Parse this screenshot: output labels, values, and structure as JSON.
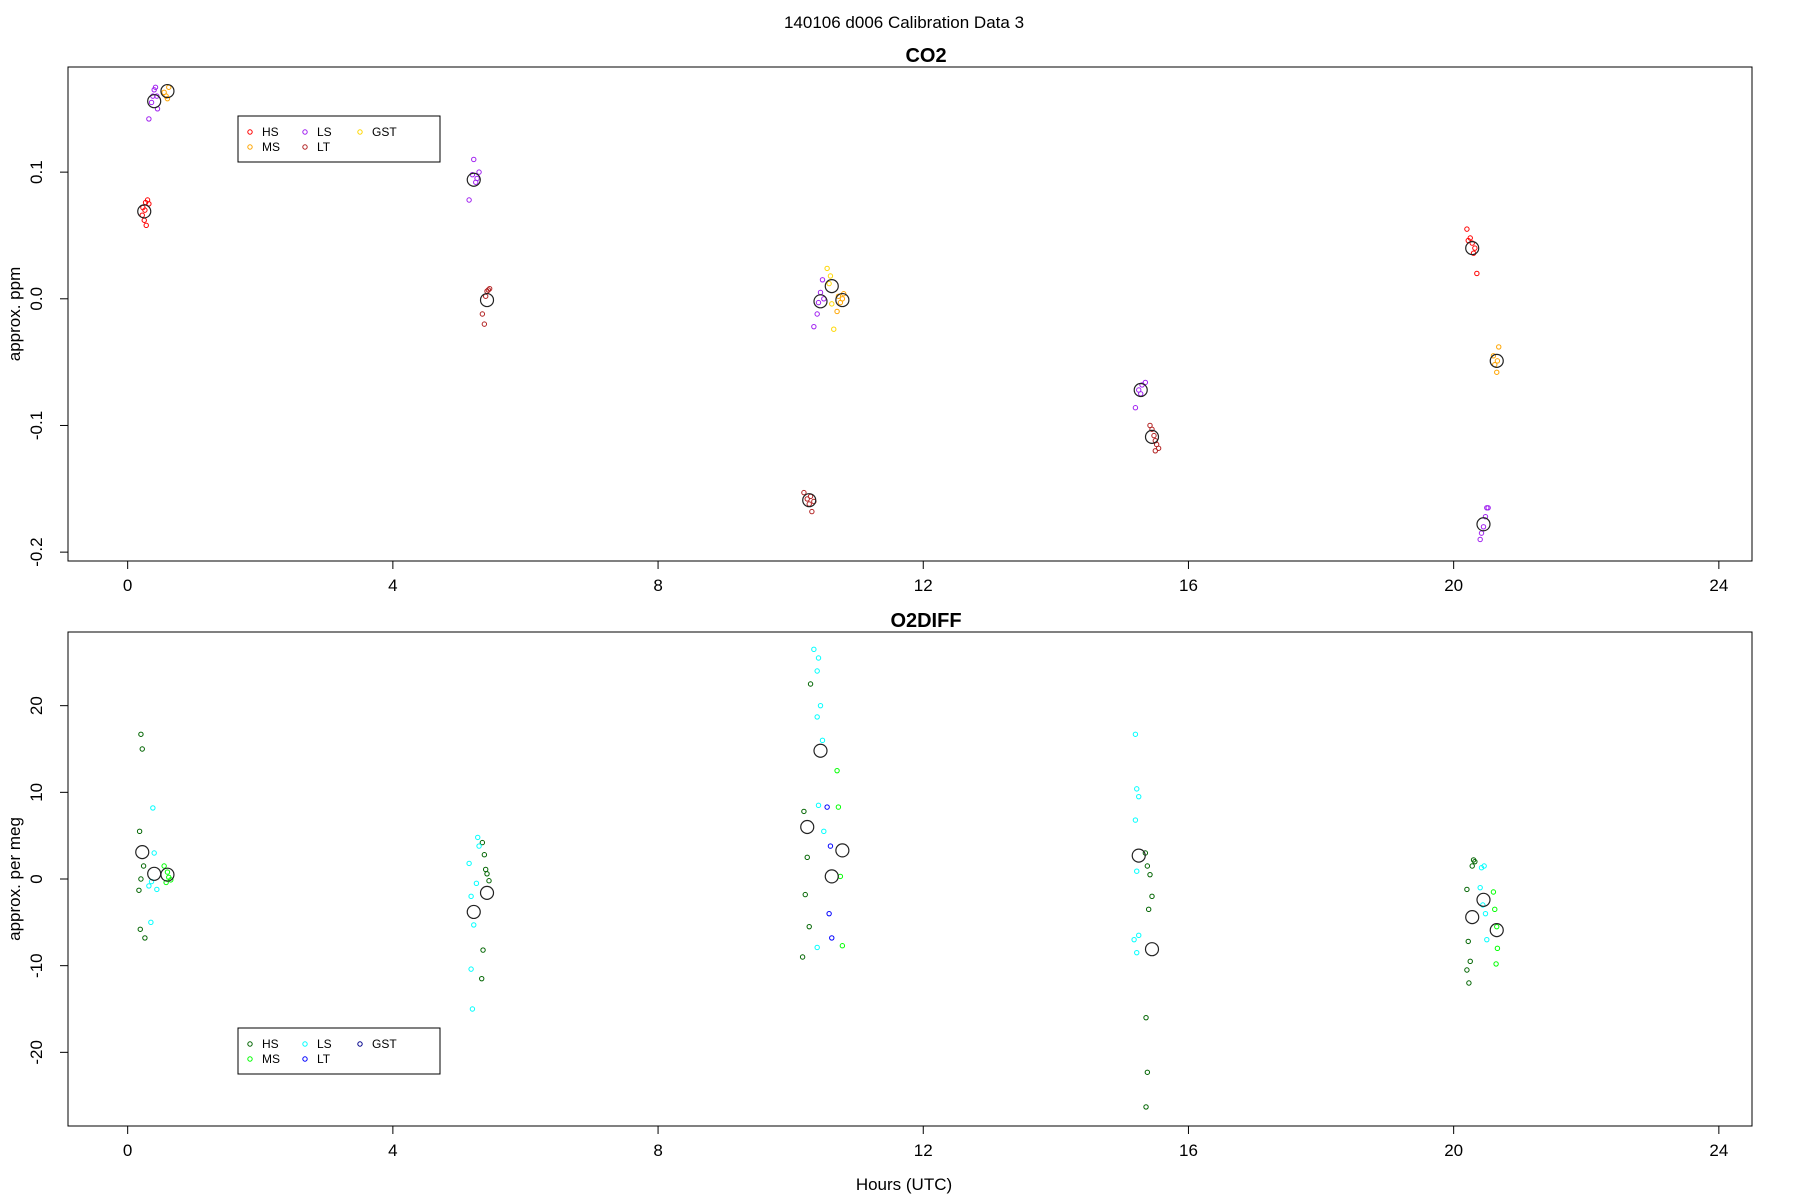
{
  "figure": {
    "suptitle": "140106   d006   Calibration Data 3",
    "xlabel": "Hours (UTC)"
  },
  "chart_data": [
    {
      "type": "scatter",
      "title": "CO2",
      "xlabel": "",
      "ylabel": "approx. ppm",
      "xlim": [
        -0.9,
        24.5
      ],
      "ylim": [
        -0.207,
        0.183
      ],
      "xticks": [
        0,
        4,
        8,
        12,
        16,
        20,
        24
      ],
      "yticks": [
        -0.2,
        -0.1,
        0.0,
        0.1
      ],
      "ytick_labels": [
        "-0.2",
        "-0.1",
        "0.0",
        "0.1"
      ],
      "legend_position": "top-left",
      "series": [
        {
          "name": "HS",
          "color": "#ff0000",
          "points": [
            [
              0.22,
              0.066
            ],
            [
              0.25,
              0.062
            ],
            [
              0.28,
              0.058
            ],
            [
              0.23,
              0.072
            ],
            [
              0.27,
              0.076
            ],
            [
              0.3,
              0.078
            ],
            [
              0.32,
              0.075
            ],
            [
              0.26,
              0.07
            ],
            [
              20.2,
              0.055
            ],
            [
              20.25,
              0.048
            ],
            [
              20.28,
              0.044
            ],
            [
              20.3,
              0.036
            ],
            [
              20.32,
              0.04
            ],
            [
              20.35,
              0.02
            ],
            [
              20.22,
              0.046
            ]
          ]
        },
        {
          "name": "MS",
          "color": "#ffa500",
          "points": [
            [
              0.55,
              0.163
            ],
            [
              0.58,
              0.16
            ],
            [
              0.62,
              0.167
            ],
            [
              0.6,
              0.158
            ],
            [
              10.72,
              0.002
            ],
            [
              10.75,
              -0.003
            ],
            [
              10.78,
              0.0
            ],
            [
              10.7,
              -0.01
            ],
            [
              10.8,
              0.004
            ],
            [
              20.6,
              -0.045
            ],
            [
              20.62,
              -0.052
            ],
            [
              20.65,
              -0.058
            ],
            [
              20.68,
              -0.038
            ],
            [
              20.66,
              -0.049
            ]
          ]
        },
        {
          "name": "LS",
          "color": "#a020f0",
          "points": [
            [
              0.32,
              0.142
            ],
            [
              0.36,
              0.155
            ],
            [
              0.38,
              0.16
            ],
            [
              0.4,
              0.165
            ],
            [
              0.42,
              0.167
            ],
            [
              0.45,
              0.15
            ],
            [
              0.44,
              0.16
            ],
            [
              5.15,
              0.078
            ],
            [
              5.2,
              0.098
            ],
            [
              5.22,
              0.11
            ],
            [
              5.25,
              0.092
            ],
            [
              5.27,
              0.095
            ],
            [
              5.3,
              0.1
            ],
            [
              10.35,
              -0.022
            ],
            [
              10.4,
              -0.012
            ],
            [
              10.42,
              -0.003
            ],
            [
              10.45,
              0.005
            ],
            [
              10.48,
              0.015
            ],
            [
              10.5,
              0.0
            ],
            [
              15.2,
              -0.086
            ],
            [
              15.25,
              -0.072
            ],
            [
              15.3,
              -0.068
            ],
            [
              15.35,
              -0.066
            ],
            [
              15.28,
              -0.075
            ],
            [
              20.4,
              -0.19
            ],
            [
              20.42,
              -0.185
            ],
            [
              20.45,
              -0.18
            ],
            [
              20.48,
              -0.172
            ],
            [
              20.5,
              -0.165
            ],
            [
              20.52,
              -0.165
            ]
          ]
        },
        {
          "name": "LT",
          "color": "#b22222",
          "points": [
            [
              5.35,
              -0.012
            ],
            [
              5.38,
              -0.02
            ],
            [
              5.4,
              0.002
            ],
            [
              5.42,
              0.006
            ],
            [
              5.44,
              0.007
            ],
            [
              5.46,
              0.008
            ],
            [
              10.2,
              -0.153
            ],
            [
              10.25,
              -0.158
            ],
            [
              10.28,
              -0.162
            ],
            [
              10.3,
              -0.156
            ],
            [
              10.32,
              -0.168
            ],
            [
              10.35,
              -0.16
            ],
            [
              15.42,
              -0.1
            ],
            [
              15.45,
              -0.103
            ],
            [
              15.48,
              -0.108
            ],
            [
              15.5,
              -0.112
            ],
            [
              15.52,
              -0.115
            ],
            [
              15.55,
              -0.118
            ],
            [
              15.5,
              -0.12
            ]
          ]
        },
        {
          "name": "GST",
          "color": "#ffd700",
          "points": [
            [
              10.55,
              0.024
            ],
            [
              10.58,
              0.012
            ],
            [
              10.62,
              -0.004
            ],
            [
              10.65,
              -0.024
            ],
            [
              10.6,
              0.018
            ]
          ]
        }
      ],
      "means": [
        [
          0.25,
          0.069
        ],
        [
          0.4,
          0.156
        ],
        [
          0.6,
          0.164
        ],
        [
          5.22,
          0.094
        ],
        [
          5.42,
          -0.001
        ],
        [
          10.28,
          -0.159
        ],
        [
          10.45,
          -0.002
        ],
        [
          10.62,
          0.01
        ],
        [
          10.78,
          -0.001
        ],
        [
          15.28,
          -0.072
        ],
        [
          15.45,
          -0.109
        ],
        [
          20.28,
          0.04
        ],
        [
          20.45,
          -0.178
        ],
        [
          20.65,
          -0.049
        ]
      ]
    },
    {
      "type": "scatter",
      "title": "O2DIFF",
      "xlabel": "Hours (UTC)",
      "ylabel": "approx. per meg",
      "xlim": [
        -0.9,
        24.5
      ],
      "ylim": [
        -28.5,
        28.5
      ],
      "xticks": [
        0,
        4,
        8,
        12,
        16,
        20,
        24
      ],
      "yticks": [
        -20,
        -10,
        0,
        10,
        20
      ],
      "ytick_labels": [
        "-20",
        "-10",
        "0",
        "10",
        "20"
      ],
      "legend_position": "bottom-left",
      "series": [
        {
          "name": "HS",
          "color": "#006400",
          "points": [
            [
              0.2,
              16.7
            ],
            [
              0.22,
              15.0
            ],
            [
              0.18,
              5.5
            ],
            [
              0.24,
              1.5
            ],
            [
              0.2,
              0.0
            ],
            [
              0.17,
              -1.3
            ],
            [
              0.19,
              -5.8
            ],
            [
              0.26,
              -6.8
            ],
            [
              5.35,
              4.2
            ],
            [
              5.38,
              2.8
            ],
            [
              5.4,
              1.1
            ],
            [
              5.42,
              0.6
            ],
            [
              5.45,
              -0.2
            ],
            [
              5.36,
              -8.2
            ],
            [
              5.34,
              -11.5
            ],
            [
              10.2,
              7.8
            ],
            [
              10.25,
              2.5
            ],
            [
              10.22,
              -1.8
            ],
            [
              10.28,
              -5.5
            ],
            [
              10.18,
              -9.0
            ],
            [
              10.3,
              22.5
            ],
            [
              15.35,
              3.0
            ],
            [
              15.38,
              1.5
            ],
            [
              15.42,
              0.5
            ],
            [
              15.45,
              -2.0
            ],
            [
              15.4,
              -3.5
            ],
            [
              15.36,
              -16.0
            ],
            [
              15.38,
              -22.3
            ],
            [
              15.36,
              -26.3
            ],
            [
              20.2,
              -1.2
            ],
            [
              20.22,
              -7.2
            ],
            [
              20.25,
              -9.5
            ],
            [
              20.2,
              -10.5
            ],
            [
              20.23,
              -12.0
            ],
            [
              20.3,
              2.2
            ],
            [
              20.28,
              1.5
            ],
            [
              20.32,
              2.0
            ]
          ]
        },
        {
          "name": "MS",
          "color": "#00ff00",
          "points": [
            [
              0.55,
              1.5
            ],
            [
              0.6,
              0.8
            ],
            [
              0.62,
              0.2
            ],
            [
              0.58,
              -0.4
            ],
            [
              0.65,
              -0.1
            ],
            [
              10.7,
              12.5
            ],
            [
              10.72,
              8.3
            ],
            [
              10.75,
              0.3
            ],
            [
              10.78,
              -7.7
            ],
            [
              20.6,
              -1.5
            ],
            [
              20.62,
              -3.5
            ],
            [
              20.65,
              -5.5
            ],
            [
              20.66,
              -8.0
            ],
            [
              20.64,
              -9.8
            ]
          ]
        },
        {
          "name": "LS",
          "color": "#00ffff",
          "points": [
            [
              0.38,
              8.2
            ],
            [
              0.4,
              3.0
            ],
            [
              0.36,
              -0.3
            ],
            [
              0.44,
              -1.2
            ],
            [
              0.32,
              -0.8
            ],
            [
              0.35,
              -5.0
            ],
            [
              5.15,
              1.8
            ],
            [
              5.18,
              -2.0
            ],
            [
              5.22,
              -5.3
            ],
            [
              5.26,
              -0.5
            ],
            [
              5.28,
              4.8
            ],
            [
              5.3,
              3.8
            ],
            [
              5.18,
              -10.4
            ],
            [
              5.2,
              -15.0
            ],
            [
              10.35,
              26.5
            ],
            [
              10.4,
              24.0
            ],
            [
              10.42,
              25.5
            ],
            [
              10.45,
              20.0
            ],
            [
              10.48,
              16.0
            ],
            [
              10.4,
              18.7
            ],
            [
              10.42,
              8.5
            ],
            [
              10.5,
              5.5
            ],
            [
              10.4,
              -7.9
            ],
            [
              15.2,
              16.7
            ],
            [
              15.22,
              10.4
            ],
            [
              15.25,
              9.5
            ],
            [
              15.2,
              6.8
            ],
            [
              15.22,
              0.9
            ],
            [
              15.25,
              -6.5
            ],
            [
              15.18,
              -7.0
            ],
            [
              15.22,
              -8.5
            ],
            [
              20.4,
              -1.0
            ],
            [
              20.42,
              1.3
            ],
            [
              20.44,
              -3.0
            ],
            [
              20.48,
              -4.0
            ],
            [
              20.5,
              -7.0
            ],
            [
              20.46,
              1.5
            ]
          ]
        },
        {
          "name": "LT",
          "color": "#0000ff",
          "points": [
            [
              10.55,
              8.3
            ],
            [
              10.6,
              3.8
            ],
            [
              10.58,
              -4.0
            ],
            [
              10.62,
              -6.8
            ]
          ]
        },
        {
          "name": "GST",
          "color": "#00008b",
          "points": []
        }
      ],
      "means": [
        [
          0.22,
          3.1
        ],
        [
          0.4,
          0.6
        ],
        [
          0.6,
          0.5
        ],
        [
          5.22,
          -3.8
        ],
        [
          5.42,
          -1.6
        ],
        [
          10.25,
          6.0
        ],
        [
          10.45,
          14.8
        ],
        [
          10.62,
          0.3
        ],
        [
          10.78,
          3.3
        ],
        [
          15.25,
          2.7
        ],
        [
          15.45,
          -8.1
        ],
        [
          20.28,
          -4.4
        ],
        [
          20.45,
          -2.4
        ],
        [
          20.65,
          -5.9
        ]
      ]
    }
  ]
}
